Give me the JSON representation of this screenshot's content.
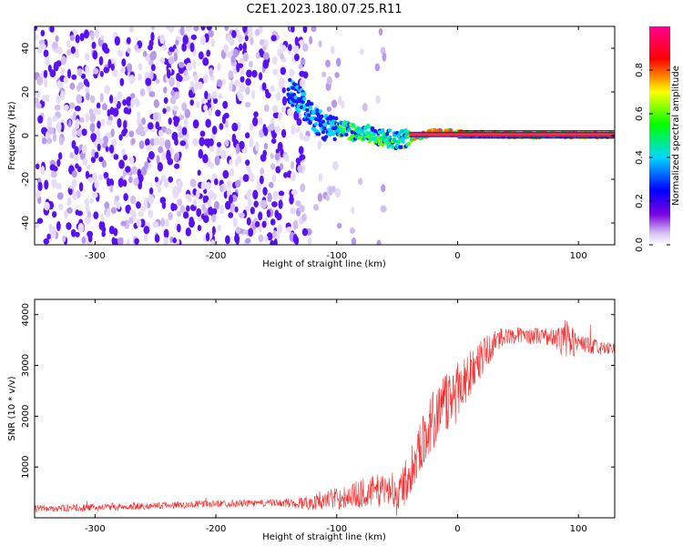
{
  "figure": {
    "title": "C2E1.2023.180.07.25.R11"
  },
  "chart_data": [
    {
      "type": "heatmap",
      "xlabel": "Height of straight line (km)",
      "ylabel": "Frequency (Hz)",
      "xlim": [
        -350,
        130
      ],
      "ylim": [
        -50,
        50
      ],
      "x_ticks": [
        -300,
        -200,
        -100,
        0,
        100
      ],
      "y_ticks": [
        -40,
        -20,
        0,
        20,
        40
      ],
      "grid": false,
      "colorbar": {
        "label": "Normalized spectral amplitude",
        "ticks": [
          0.0,
          0.2,
          0.4,
          0.6,
          0.8
        ],
        "range": [
          0,
          1
        ],
        "colormap": [
          "#ffffff",
          "#d9c6f2",
          "#7a00e0",
          "#0000ff",
          "#00d8ff",
          "#00ff00",
          "#ffff00",
          "#ff0000",
          "#ff0090"
        ]
      },
      "trace_center_hz": [
        [
          -140,
          22
        ],
        [
          -130,
          16
        ],
        [
          -120,
          8
        ],
        [
          -110,
          4
        ],
        [
          -100,
          3
        ],
        [
          -90,
          2
        ],
        [
          -80,
          1.5
        ],
        [
          -70,
          0
        ],
        [
          -60,
          -1
        ],
        [
          -50,
          -2.5
        ],
        [
          -40,
          -1
        ],
        [
          -30,
          0
        ],
        [
          -20,
          1.5
        ],
        [
          -10,
          1.5
        ],
        [
          0,
          1
        ],
        [
          10,
          0.5
        ],
        [
          20,
          0.8
        ],
        [
          40,
          0.4
        ],
        [
          60,
          0.3
        ],
        [
          80,
          0.3
        ],
        [
          100,
          0.3
        ],
        [
          130,
          0.3
        ]
      ]
    },
    {
      "type": "line",
      "xlabel": "Height of straight line (km)",
      "ylabel": "SNR (10 * v/v)",
      "xlim": [
        -350,
        130
      ],
      "ylim": [
        0,
        4300
      ],
      "x_ticks": [
        -300,
        -200,
        -100,
        0,
        100
      ],
      "y_ticks": [
        1000,
        2000,
        3000,
        4000
      ],
      "grid": false,
      "series_color": "#f03030",
      "envelope_mean": [
        [
          -350,
          180
        ],
        [
          -300,
          200
        ],
        [
          -250,
          240
        ],
        [
          -200,
          280
        ],
        [
          -150,
          290
        ],
        [
          -120,
          300
        ],
        [
          -100,
          380
        ],
        [
          -80,
          480
        ],
        [
          -60,
          560
        ],
        [
          -45,
          600
        ],
        [
          -35,
          1200
        ],
        [
          -25,
          1700
        ],
        [
          -15,
          2100
        ],
        [
          -5,
          2400
        ],
        [
          5,
          2700
        ],
        [
          15,
          3000
        ],
        [
          25,
          3300
        ],
        [
          35,
          3550
        ],
        [
          50,
          3600
        ],
        [
          70,
          3580
        ],
        [
          90,
          3500
        ],
        [
          110,
          3380
        ],
        [
          130,
          3300
        ]
      ],
      "envelope_spread": [
        [
          -350,
          70
        ],
        [
          -150,
          70
        ],
        [
          -120,
          150
        ],
        [
          -60,
          350
        ],
        [
          -40,
          450
        ],
        [
          -20,
          600
        ],
        [
          0,
          650
        ],
        [
          20,
          400
        ],
        [
          40,
          150
        ],
        [
          80,
          180
        ],
        [
          90,
          450
        ],
        [
          100,
          200
        ],
        [
          130,
          120
        ]
      ]
    }
  ]
}
